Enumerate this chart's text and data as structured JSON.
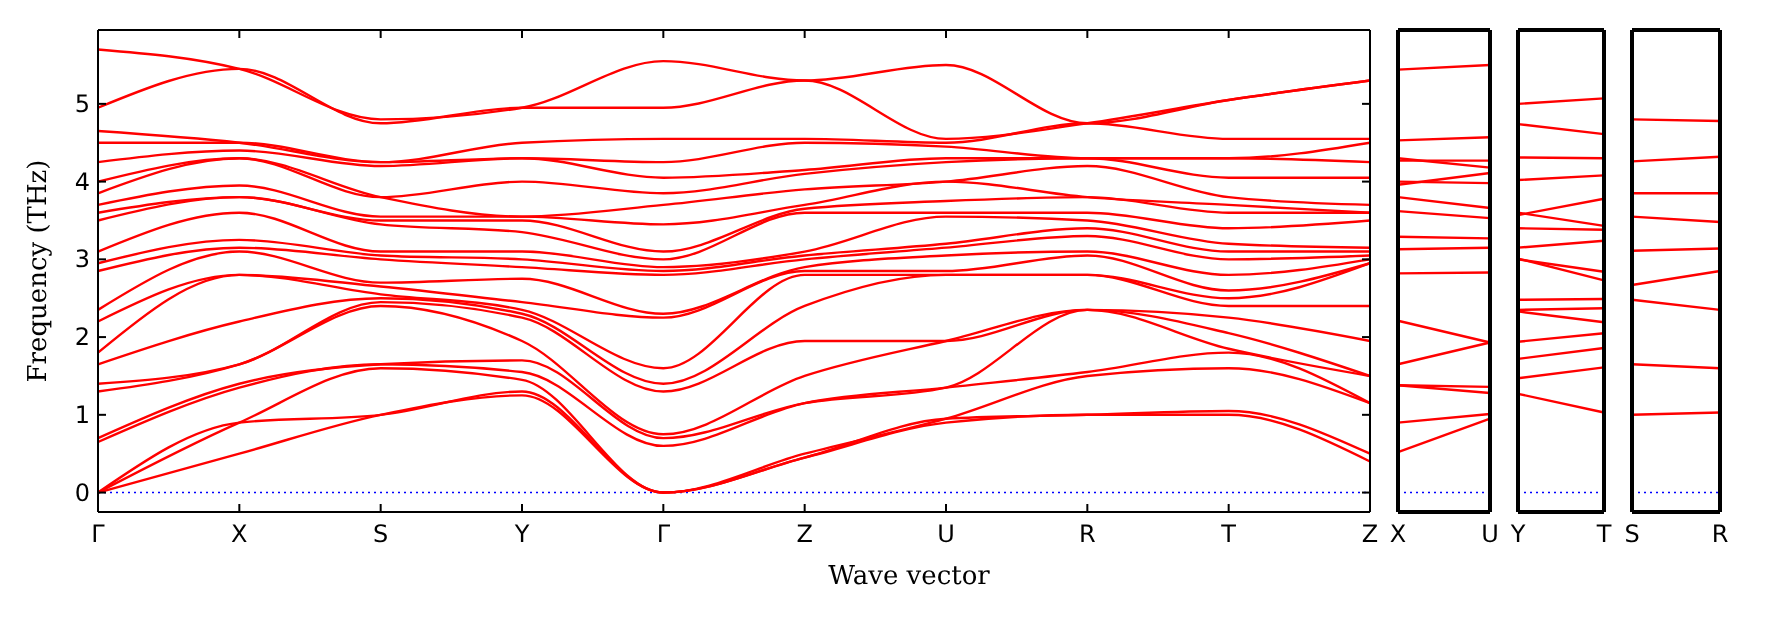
{
  "chart_data": [
    {
      "type": "line",
      "xlabel": "Wave vector",
      "ylabel": "Frequency (THz)",
      "categories": [
        "Γ",
        "X",
        "S",
        "Y",
        "Γ",
        "Z",
        "U",
        "R",
        "T",
        "Z"
      ],
      "ylim": [
        -0.25,
        5.95
      ],
      "yticks": [
        0,
        1,
        2,
        3,
        4,
        5
      ],
      "ref_lines": [
        {
          "axis": "y",
          "value": 0,
          "color": "#0000ff",
          "line_style": "dotted"
        }
      ],
      "series": [
        {
          "color": "#ff0000",
          "values": [
            0,
            0.5,
            1.0,
            1.25,
            0,
            0.45,
            0.9,
            1.0,
            1.0,
            0.4
          ]
        },
        {
          "color": "#ff0000",
          "values": [
            0,
            0.9,
            1.0,
            1.3,
            0,
            0.45,
            0.95,
            1.0,
            1.05,
            0.5
          ]
        },
        {
          "color": "#ff0000",
          "values": [
            0,
            0.9,
            1.6,
            1.45,
            0,
            0.5,
            0.95,
            1.5,
            1.6,
            1.15
          ]
        },
        {
          "color": "#ff0000",
          "values": [
            0.65,
            1.35,
            1.65,
            1.55,
            0.6,
            1.15,
            1.35,
            1.55,
            1.8,
            1.15
          ]
        },
        {
          "color": "#ff0000",
          "values": [
            0.7,
            1.4,
            1.65,
            1.7,
            0.7,
            1.15,
            1.35,
            2.35,
            1.85,
            1.5
          ]
        },
        {
          "color": "#ff0000",
          "values": [
            1.3,
            1.65,
            2.4,
            1.95,
            0.75,
            1.5,
            1.95,
            2.35,
            2.05,
            1.5
          ]
        },
        {
          "color": "#ff0000",
          "values": [
            1.4,
            1.65,
            2.45,
            2.25,
            1.3,
            1.95,
            1.95,
            2.35,
            2.25,
            1.95
          ]
        },
        {
          "color": "#ff0000",
          "values": [
            1.65,
            2.2,
            2.5,
            2.3,
            1.4,
            2.4,
            2.8,
            2.8,
            2.4,
            2.4
          ]
        },
        {
          "color": "#ff0000",
          "values": [
            1.8,
            2.8,
            2.55,
            2.35,
            1.6,
            2.8,
            2.8,
            2.8,
            2.5,
            2.95
          ]
        },
        {
          "color": "#ff0000",
          "values": [
            2.2,
            2.8,
            2.65,
            2.45,
            2.25,
            2.85,
            2.85,
            3.05,
            2.6,
            2.95
          ]
        },
        {
          "color": "#ff0000",
          "values": [
            2.35,
            3.1,
            2.7,
            2.75,
            2.3,
            2.9,
            3.05,
            3.1,
            2.8,
            3.0
          ]
        },
        {
          "color": "#ff0000",
          "values": [
            2.85,
            3.15,
            3.0,
            2.9,
            2.8,
            3.0,
            3.15,
            3.3,
            3.0,
            3.05
          ]
        },
        {
          "color": "#ff0000",
          "values": [
            2.95,
            3.25,
            3.05,
            3.0,
            2.85,
            3.05,
            3.2,
            3.4,
            3.1,
            3.1
          ]
        },
        {
          "color": "#ff0000",
          "values": [
            3.1,
            3.6,
            3.1,
            3.1,
            2.9,
            3.1,
            3.55,
            3.5,
            3.2,
            3.15
          ]
        },
        {
          "color": "#ff0000",
          "values": [
            3.5,
            3.8,
            3.45,
            3.35,
            3.0,
            3.6,
            3.6,
            3.6,
            3.4,
            3.5
          ]
        },
        {
          "color": "#ff0000",
          "values": [
            3.6,
            3.8,
            3.5,
            3.5,
            3.1,
            3.65,
            3.75,
            3.8,
            3.6,
            3.6
          ]
        },
        {
          "color": "#ff0000",
          "values": [
            3.7,
            3.95,
            3.55,
            3.55,
            3.45,
            3.7,
            4.0,
            3.8,
            3.7,
            3.6
          ]
        },
        {
          "color": "#ff0000",
          "values": [
            3.85,
            4.3,
            3.8,
            3.55,
            3.7,
            3.9,
            4.0,
            4.2,
            3.8,
            3.7
          ]
        },
        {
          "color": "#ff0000",
          "values": [
            4.0,
            4.3,
            3.8,
            4.0,
            3.85,
            4.1,
            4.25,
            4.3,
            4.05,
            4.05
          ]
        },
        {
          "color": "#ff0000",
          "values": [
            4.25,
            4.4,
            4.2,
            4.3,
            4.05,
            4.15,
            4.3,
            4.3,
            4.3,
            4.25
          ]
        },
        {
          "color": "#ff0000",
          "values": [
            4.5,
            4.5,
            4.25,
            4.3,
            4.25,
            4.5,
            4.45,
            4.3,
            4.3,
            4.5
          ]
        },
        {
          "color": "#ff0000",
          "values": [
            4.65,
            4.5,
            4.25,
            4.5,
            4.55,
            4.55,
            4.5,
            4.75,
            4.55,
            4.55
          ]
        },
        {
          "color": "#ff0000",
          "values": [
            4.95,
            5.45,
            4.75,
            4.95,
            4.95,
            5.3,
            4.55,
            4.75,
            5.05,
            5.3
          ]
        },
        {
          "color": "#ff0000",
          "values": [
            5.7,
            5.45,
            4.8,
            4.95,
            5.55,
            5.3,
            5.5,
            4.75,
            5.05,
            5.3
          ]
        }
      ]
    },
    {
      "type": "line",
      "tick_labels": "x",
      "categories": [
        "X",
        "U"
      ],
      "ylim": [
        -0.25,
        5.95
      ],
      "ref_lines": [
        {
          "axis": "y",
          "value": 0,
          "color": "#0000ff",
          "line_style": "dotted"
        }
      ],
      "series": [
        {
          "color": "#ff0000",
          "values": [
            5.44,
            5.5
          ]
        },
        {
          "color": "#ff0000",
          "values": [
            4.53,
            4.57
          ]
        },
        {
          "color": "#ff0000",
          "values": [
            4.3,
            4.18
          ]
        },
        {
          "color": "#ff0000",
          "values": [
            4.27,
            4.27
          ]
        },
        {
          "color": "#ff0000",
          "values": [
            3.96,
            4.11
          ]
        },
        {
          "color": "#ff0000",
          "values": [
            4.0,
            3.98
          ]
        },
        {
          "color": "#ff0000",
          "values": [
            3.8,
            3.66
          ]
        },
        {
          "color": "#ff0000",
          "values": [
            3.62,
            3.53
          ]
        },
        {
          "color": "#ff0000",
          "values": [
            3.29,
            3.27
          ]
        },
        {
          "color": "#ff0000",
          "values": [
            3.13,
            3.15
          ]
        },
        {
          "color": "#ff0000",
          "values": [
            2.82,
            2.83
          ]
        },
        {
          "color": "#ff0000",
          "values": [
            2.21,
            1.93
          ]
        },
        {
          "color": "#ff0000",
          "values": [
            1.65,
            1.93
          ]
        },
        {
          "color": "#ff0000",
          "values": [
            1.38,
            1.28
          ]
        },
        {
          "color": "#ff0000",
          "values": [
            1.38,
            1.36
          ]
        },
        {
          "color": "#ff0000",
          "values": [
            0.9,
            1.01
          ]
        },
        {
          "color": "#ff0000",
          "values": [
            0.52,
            0.95
          ]
        }
      ]
    },
    {
      "type": "line",
      "tick_labels": "x",
      "categories": [
        "Y",
        "T"
      ],
      "ylim": [
        -0.25,
        5.95
      ],
      "ref_lines": [
        {
          "axis": "y",
          "value": 0,
          "color": "#0000ff",
          "line_style": "dotted"
        }
      ],
      "series": [
        {
          "color": "#ff0000",
          "values": [
            5.0,
            5.07
          ]
        },
        {
          "color": "#ff0000",
          "values": [
            4.74,
            4.61
          ]
        },
        {
          "color": "#ff0000",
          "values": [
            4.31,
            4.3
          ]
        },
        {
          "color": "#ff0000",
          "values": [
            4.02,
            4.08
          ]
        },
        {
          "color": "#ff0000",
          "values": [
            3.57,
            3.78
          ]
        },
        {
          "color": "#ff0000",
          "values": [
            3.6,
            3.43
          ]
        },
        {
          "color": "#ff0000",
          "values": [
            3.4,
            3.38
          ]
        },
        {
          "color": "#ff0000",
          "values": [
            3.15,
            3.24
          ]
        },
        {
          "color": "#ff0000",
          "values": [
            3.0,
            2.84
          ]
        },
        {
          "color": "#ff0000",
          "values": [
            3.01,
            2.73
          ]
        },
        {
          "color": "#ff0000",
          "values": [
            2.48,
            2.49
          ]
        },
        {
          "color": "#ff0000",
          "values": [
            2.35,
            2.37
          ]
        },
        {
          "color": "#ff0000",
          "values": [
            2.33,
            2.19
          ]
        },
        {
          "color": "#ff0000",
          "values": [
            1.94,
            2.05
          ]
        },
        {
          "color": "#ff0000",
          "values": [
            1.72,
            1.86
          ]
        },
        {
          "color": "#ff0000",
          "values": [
            1.47,
            1.61
          ]
        },
        {
          "color": "#ff0000",
          "values": [
            1.27,
            1.03
          ]
        }
      ]
    },
    {
      "type": "line",
      "tick_labels": "x",
      "categories": [
        "S",
        "R"
      ],
      "ylim": [
        -0.25,
        5.95
      ],
      "ref_lines": [
        {
          "axis": "y",
          "value": 0,
          "color": "#0000ff",
          "line_style": "dotted"
        }
      ],
      "series": [
        {
          "color": "#ff0000",
          "values": [
            4.8,
            4.78
          ]
        },
        {
          "color": "#ff0000",
          "values": [
            4.26,
            4.32
          ]
        },
        {
          "color": "#ff0000",
          "values": [
            3.85,
            3.85
          ]
        },
        {
          "color": "#ff0000",
          "values": [
            3.55,
            3.48
          ]
        },
        {
          "color": "#ff0000",
          "values": [
            3.11,
            3.14
          ]
        },
        {
          "color": "#ff0000",
          "values": [
            2.67,
            2.85
          ]
        },
        {
          "color": "#ff0000",
          "values": [
            2.48,
            2.35
          ]
        },
        {
          "color": "#ff0000",
          "values": [
            1.65,
            1.6
          ]
        },
        {
          "color": "#ff0000",
          "values": [
            1.0,
            1.03
          ]
        }
      ]
    }
  ]
}
